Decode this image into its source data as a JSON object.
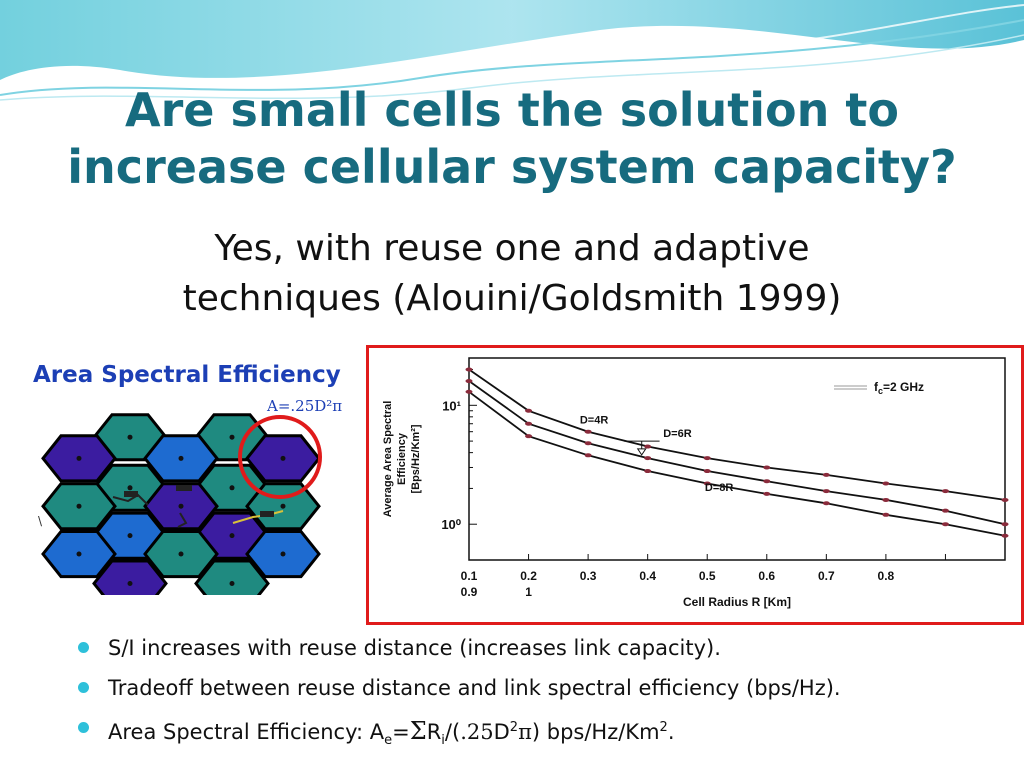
{
  "slide": {
    "title_line1": "Are small cells the solution to",
    "title_line2": "increase cellular system capacity?",
    "subtitle_line1": "Yes, with reuse one and adaptive",
    "subtitle_line2": "techniques (Alouini/Goldsmith 1999)"
  },
  "left_panel": {
    "label": "Area Spectral Efficiency",
    "formula": "A=.25D²π",
    "hex_colors": {
      "purple": "#3b1ca0",
      "teal": "#1f8a80",
      "blue": "#1e6bd0",
      "outline": "#000000"
    }
  },
  "chart_data": {
    "type": "line",
    "legend": "fₙ=2 GHz",
    "legend_main": "f",
    "legend_sub": "c",
    "legend_rest": "=2 GHz",
    "xlabel": "Cell Radius R [Km]",
    "ylabel_line1": "Average Area Spectral",
    "ylabel_line2": "Efficiency",
    "ylabel_line3": "[Bps/Hz/Km²]",
    "y_scale": "log",
    "ylim": [
      0.5,
      25
    ],
    "xlim": [
      0.1,
      1.0
    ],
    "x_ticks": [
      "0.1",
      "0.2",
      "0.3",
      "0.4",
      "0.5",
      "0.6",
      "0.7",
      "0.8"
    ],
    "x_ticks_row2": [
      "0.9",
      "1"
    ],
    "y_ticks": [
      "10¹",
      "10⁰"
    ],
    "annotations": [
      "D=4R",
      "D=6R",
      "D=8R"
    ],
    "series": [
      {
        "label": "D=4R",
        "x": [
          0.1,
          0.2,
          0.3,
          0.4,
          0.5,
          0.6,
          0.7,
          0.8,
          0.9,
          1.0
        ],
        "y": [
          20.0,
          9.0,
          6.0,
          4.5,
          3.6,
          3.0,
          2.6,
          2.2,
          1.9,
          1.6
        ]
      },
      {
        "label": "D=6R",
        "x": [
          0.1,
          0.2,
          0.3,
          0.4,
          0.5,
          0.6,
          0.7,
          0.8,
          0.9,
          1.0
        ],
        "y": [
          16.0,
          7.0,
          4.8,
          3.6,
          2.8,
          2.3,
          1.9,
          1.6,
          1.3,
          1.0
        ]
      },
      {
        "label": "D=8R",
        "x": [
          0.1,
          0.2,
          0.3,
          0.4,
          0.5,
          0.6,
          0.7,
          0.8,
          0.9,
          1.0
        ],
        "y": [
          13.0,
          5.5,
          3.8,
          2.8,
          2.2,
          1.8,
          1.5,
          1.2,
          1.0,
          0.8
        ]
      }
    ],
    "line_color": "#111111",
    "marker_color": "#8a2b3b"
  },
  "bullets": {
    "b1": "S/I increases with reuse distance (increases link capacity).",
    "b2": "Tradeoff between reuse distance and link spectral efficiency (bps/Hz).",
    "b3_prefix": "Area Spectral Efficiency: A",
    "b3_sub_e": "e",
    "b3_eq": "=",
    "b3_sigma": "Σ",
    "b3_R": "R",
    "b3_sub_i": "i",
    "b3_paren": "/(",
    "b3_coef": ".25",
    "b3_D": "D",
    "b3_sup2": "2",
    "b3_pi": "π",
    "b3_suffix": ") bps/Hz/Km",
    "b3_sup_km": "2",
    "b3_end": "."
  },
  "colors": {
    "title": "#176b7f",
    "bullet": "#2ec0da",
    "chart_border": "#e01b1b",
    "circle": "#e01b1b",
    "label_blue": "#1c3fb5"
  }
}
